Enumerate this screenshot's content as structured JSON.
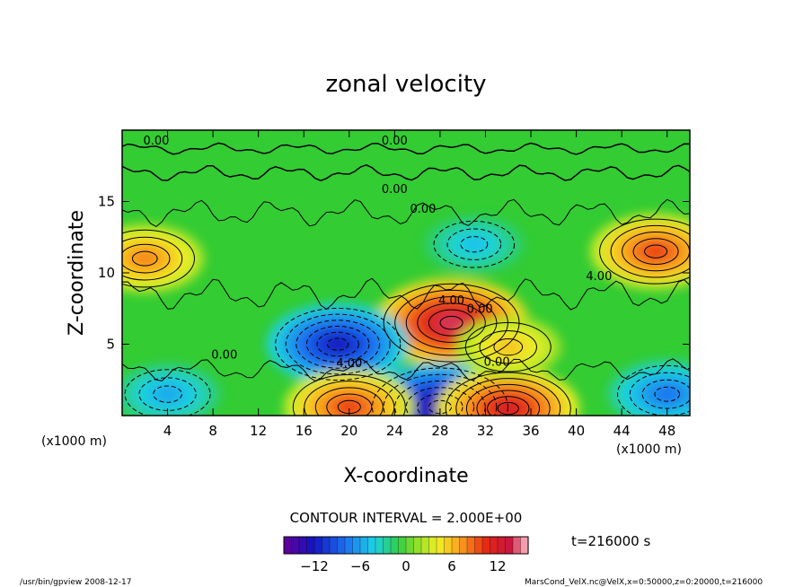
{
  "chart_data": {
    "type": "heatmap",
    "title": "zonal velocity",
    "xlabel": "X-coordinate",
    "ylabel": "Z-coordinate",
    "x_unit": "(x1000 m)",
    "y_unit": "(x1000 m)",
    "xlim": [
      0,
      50
    ],
    "ylim": [
      0,
      20
    ],
    "x_ticks": [
      4,
      8,
      12,
      16,
      20,
      24,
      28,
      32,
      36,
      40,
      44,
      48
    ],
    "y_ticks": [
      5,
      10,
      15
    ],
    "contour_interval_text": "CONTOUR INTERVAL = 2.000E+00",
    "time_text": "t=216000 s",
    "colorbar": {
      "range": [
        -16,
        16
      ],
      "ticks": [
        -12,
        -6,
        0,
        6,
        12
      ],
      "tick_labels": [
        "−12",
        "−6",
        "0",
        "6",
        "12"
      ]
    },
    "contour_labels": [
      "0.00",
      "0.00",
      "0.00",
      "0.00",
      "4.00",
      "0.00",
      "4.00",
      "4.00",
      "0.00",
      "0.00"
    ],
    "features": [
      {
        "x": 2,
        "z": 11,
        "value": 8
      },
      {
        "x": 47,
        "z": 11.5,
        "value": 10
      },
      {
        "x": 29,
        "z": 6.5,
        "value": 14
      },
      {
        "x": 19,
        "z": 5,
        "value": -12
      },
      {
        "x": 28,
        "z": 0.6,
        "value": -14
      },
      {
        "x": 20,
        "z": 0.6,
        "value": 10
      },
      {
        "x": 34,
        "z": 0.5,
        "value": 12
      },
      {
        "x": 34,
        "z": 4.8,
        "value": 6
      },
      {
        "x": 48,
        "z": 1.5,
        "value": -8
      },
      {
        "x": 4,
        "z": 1.5,
        "value": -6
      },
      {
        "x": 31,
        "z": 12,
        "value": -5
      }
    ],
    "grid": false
  },
  "footer": {
    "left": "/usr/bin/gpview  2008-12-17",
    "right": "MarsCond_VelX.nc@VelX,x=0:50000,z=0:20000,t=216000"
  }
}
